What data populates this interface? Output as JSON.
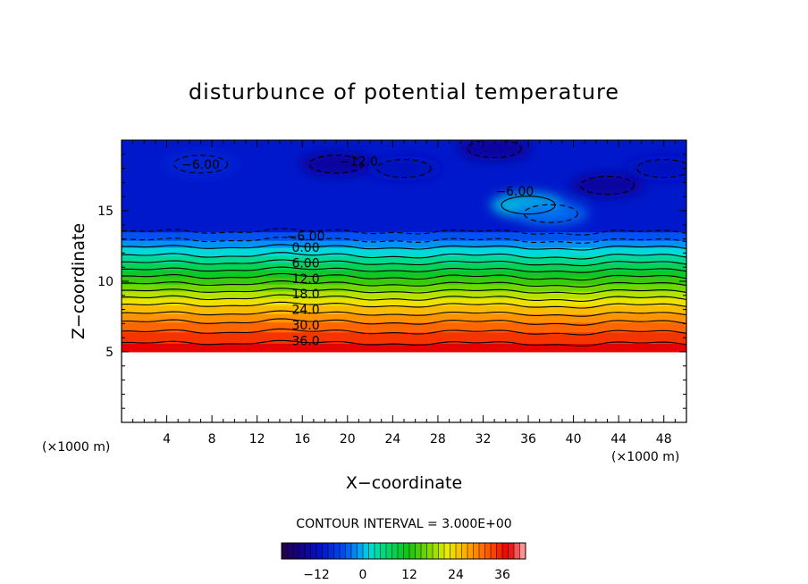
{
  "chart_data": {
    "type": "heatmap",
    "title": "disturbunce of potential temperature",
    "xlabel": "X−coordinate",
    "ylabel": "Z−coordinate",
    "x_unit": "(×1000 m)",
    "xlim": [
      0,
      50
    ],
    "ylim": [
      0,
      20
    ],
    "x_ticks": [
      4,
      8,
      12,
      16,
      20,
      24,
      28,
      32,
      36,
      40,
      44,
      48
    ],
    "y_ticks": [
      5,
      10,
      15
    ],
    "x_tick_labels": [
      "4",
      "8",
      "12",
      "16",
      "20",
      "24",
      "28",
      "32",
      "36",
      "40",
      "44",
      "48"
    ],
    "y_tick_labels": [
      "5",
      "10",
      "15"
    ],
    "contour_interval_label": "CONTOUR INTERVAL = 3.000E+00",
    "contour_interval": 3.0,
    "color_range": [
      -21,
      42
    ],
    "colorbar_ticks": [
      -12,
      0,
      12,
      24,
      36
    ],
    "colorbar_tick_labels": [
      "−12",
      "0",
      "12",
      "24",
      "36"
    ],
    "profile": {
      "z_bottom": 5.0,
      "z_top": 20.0,
      "isotherm_levels": [
        36,
        33,
        30,
        27,
        24,
        21,
        18,
        15,
        12,
        9,
        6,
        3,
        0,
        -3,
        -6
      ],
      "isotherm_heights": [
        5.6,
        6.4,
        7.1,
        7.7,
        8.3,
        8.8,
        9.3,
        9.8,
        10.3,
        10.8,
        11.3,
        11.8,
        12.4,
        12.9,
        13.5
      ]
    },
    "contour_labels": [
      {
        "text": "−6.00",
        "x": 16.3,
        "y": 13.2
      },
      {
        "text": "0.00",
        "x": 16.3,
        "y": 12.4
      },
      {
        "text": "6.00",
        "x": 16.3,
        "y": 11.3
      },
      {
        "text": "12.0",
        "x": 16.3,
        "y": 10.2
      },
      {
        "text": "18.0",
        "x": 16.3,
        "y": 9.1
      },
      {
        "text": "24.0",
        "x": 16.3,
        "y": 8.0
      },
      {
        "text": "30.0",
        "x": 16.3,
        "y": 6.9
      },
      {
        "text": "36.0",
        "x": 16.3,
        "y": 5.8
      },
      {
        "text": "−6.00",
        "x": 7.0,
        "y": 18.3
      },
      {
        "text": "−12.0",
        "x": 21.0,
        "y": 18.5
      },
      {
        "text": "−6.00",
        "x": 34.8,
        "y": 16.4
      }
    ],
    "upper_anomalies": [
      {
        "x": 19,
        "z": 18.3,
        "value": -15
      },
      {
        "x": 33,
        "z": 19.4,
        "value": -15
      },
      {
        "x": 43,
        "z": 16.8,
        "value": -15
      },
      {
        "x": 7,
        "z": 18.3,
        "value": -9
      },
      {
        "x": 36,
        "z": 15.4,
        "value": 1
      },
      {
        "x": 38,
        "z": 14.8,
        "value": -3
      },
      {
        "x": 25,
        "z": 18.0,
        "value": -12
      },
      {
        "x": 48,
        "z": 18.0,
        "value": -12
      }
    ]
  }
}
